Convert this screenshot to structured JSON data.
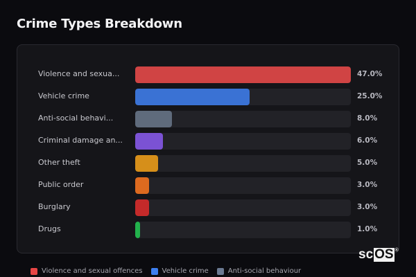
{
  "title": "Crime Types Breakdown",
  "chart_data": {
    "type": "bar",
    "orientation": "horizontal",
    "title": "Crime Types Breakdown",
    "categories": [
      "Violence and sexual offences",
      "Vehicle crime",
      "Anti-social behaviour",
      "Criminal damage and arson",
      "Other theft",
      "Public order",
      "Burglary",
      "Drugs"
    ],
    "display_labels": [
      "Violence and sexua...",
      "Vehicle crime",
      "Anti-social behavi...",
      "Criminal damage an...",
      "Other theft",
      "Public order",
      "Burglary",
      "Drugs"
    ],
    "values": [
      47.0,
      25.0,
      8.0,
      6.0,
      5.0,
      3.0,
      3.0,
      1.0
    ],
    "value_labels": [
      "47.0%",
      "25.0%",
      "8.0%",
      "6.0%",
      "5.0%",
      "3.0%",
      "3.0%",
      "1.0%"
    ],
    "colors": [
      "#d04444",
      "#3a72d4",
      "#5f6b7c",
      "#7b52d4",
      "#d68f1a",
      "#dd6a1f",
      "#c42a2a",
      "#22b14c"
    ],
    "unit": "%",
    "scale_max": 47.0,
    "grid": false,
    "legend_position": "bottom"
  },
  "legend": [
    {
      "label": "Violence and sexual offences",
      "color": "#e84545"
    },
    {
      "label": "Vehicle crime",
      "color": "#3d7ff0"
    },
    {
      "label": "Anti-social behaviour",
      "color": "#6b7a92"
    }
  ],
  "watermark": {
    "prefix": "sc",
    "boxed": "OS",
    "mark": "®"
  }
}
